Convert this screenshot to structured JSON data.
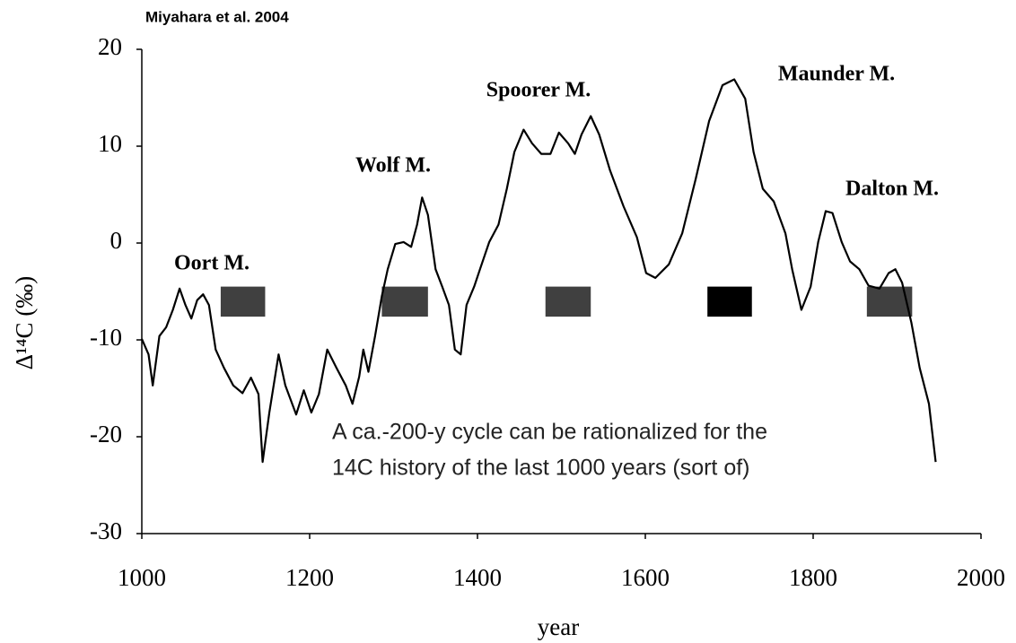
{
  "chart_data": {
    "type": "line",
    "title": "Miyahara et al. 2004",
    "x_label": "year",
    "y_label": "Δ¹⁴C (‰)",
    "xlim": [
      1000,
      2000
    ],
    "ylim": [
      -30,
      20
    ],
    "xticks": [
      1000,
      1200,
      1400,
      1600,
      1800,
      2000
    ],
    "yticks": [
      -30,
      -20,
      -10,
      0,
      10,
      20
    ],
    "grid": false,
    "series": [
      {
        "color": "#000000",
        "x": [
          1000,
          1008,
          1013,
          1021,
          1029,
          1037,
          1045,
          1052,
          1059,
          1066,
          1073,
          1080,
          1088,
          1098,
          1109,
          1120,
          1130,
          1139,
          1144,
          1152,
          1163,
          1171,
          1184,
          1193,
          1202,
          1211,
          1221,
          1232,
          1243,
          1251,
          1259,
          1264,
          1270,
          1278,
          1286,
          1293,
          1302,
          1312,
          1321,
          1328,
          1334,
          1341,
          1350,
          1358,
          1366,
          1373,
          1380,
          1387,
          1396,
          1403,
          1414,
          1425,
          1435,
          1444,
          1455,
          1465,
          1476,
          1487,
          1497,
          1508,
          1516,
          1524,
          1535,
          1545,
          1558,
          1574,
          1590,
          1601,
          1612,
          1628,
          1644,
          1660,
          1676,
          1692,
          1706,
          1719,
          1729,
          1740,
          1753,
          1767,
          1775,
          1786,
          1797,
          1806,
          1815,
          1823,
          1834,
          1844,
          1855,
          1866,
          1879,
          1890,
          1898,
          1906,
          1917,
          1927,
          1938,
          1946
        ],
        "values": [
          -9.9,
          -11.5,
          -14.7,
          -9.6,
          -8.7,
          -6.9,
          -4.7,
          -6.4,
          -7.8,
          -5.9,
          -5.3,
          -6.4,
          -11,
          -12.9,
          -14.7,
          -15.5,
          -13.9,
          -15.6,
          -22.6,
          -17.5,
          -11.5,
          -14.7,
          -17.7,
          -15.2,
          -17.5,
          -15.6,
          -11,
          -12.9,
          -14.7,
          -16.6,
          -13.8,
          -11,
          -13.3,
          -9.6,
          -5.5,
          -2.7,
          -0.1,
          0.1,
          -0.4,
          1.9,
          4.7,
          2.9,
          -2.7,
          -4.5,
          -6.4,
          -11,
          -11.5,
          -6.4,
          -4.5,
          -2.7,
          0.1,
          1.9,
          5.6,
          9.4,
          11.7,
          10.3,
          9.2,
          9.2,
          11.4,
          10.3,
          9.2,
          11.2,
          13.1,
          11.2,
          7.5,
          3.8,
          0.6,
          -3.1,
          -3.6,
          -2.2,
          1,
          6.6,
          12.6,
          16.3,
          16.9,
          14.9,
          9.4,
          5.6,
          4.3,
          1,
          -2.7,
          -6.9,
          -4.5,
          0.1,
          3.3,
          3.1,
          0.1,
          -1.9,
          -2.7,
          -4.4,
          -4.7,
          -3.1,
          -2.7,
          -4.1,
          -8.2,
          -12.9,
          -16.6,
          -22.6
        ]
      }
    ],
    "minima": {
      "ymin": -7.6,
      "ymax": -4.5,
      "periods": [
        {
          "start": 1094,
          "end": 1147,
          "color": "#404040"
        },
        {
          "start": 1286,
          "end": 1341,
          "color": "#404040"
        },
        {
          "start": 1481,
          "end": 1535,
          "color": "#404040"
        },
        {
          "start": 1674,
          "end": 1727,
          "color": "#000000"
        },
        {
          "start": 1864,
          "end": 1918,
          "color": "#404040"
        }
      ]
    },
    "annotations": [
      "Oort M.",
      "Wolf M.",
      "Spoorer M.",
      "Maunder M.",
      "Dalton M."
    ],
    "note": [
      "A ca.-200-y cycle can be rationalized for the",
      "14C history of the last 1000 years (sort of)"
    ]
  }
}
